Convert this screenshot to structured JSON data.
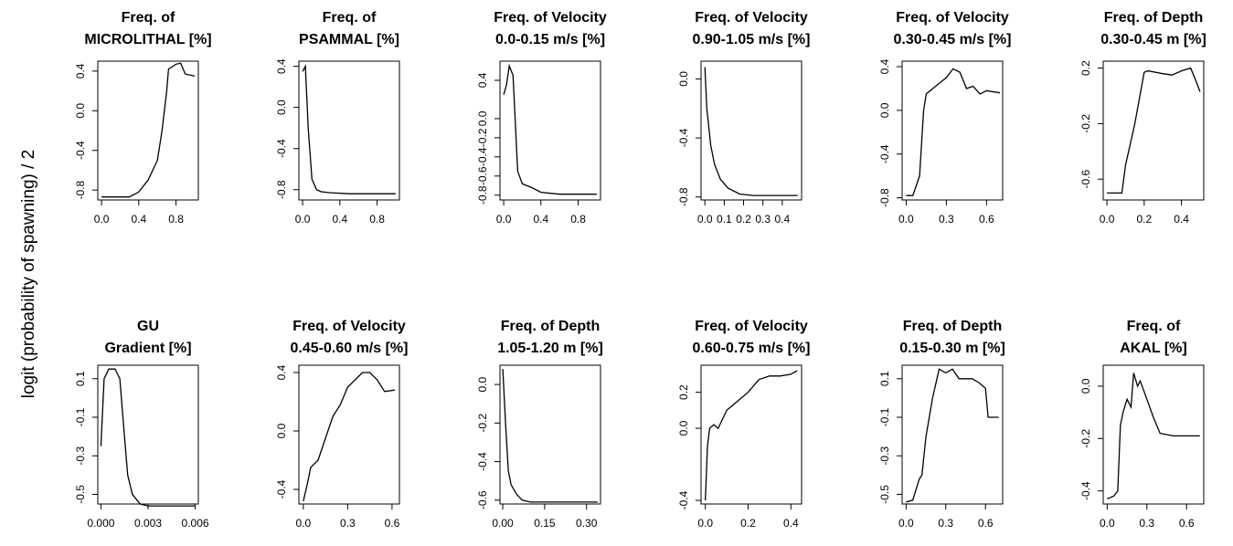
{
  "ylabel": "logit (probability of spawning) / 2",
  "chart_data": [
    {
      "type": "line",
      "title": [
        "Freq. of",
        "MICROLITHAL [%]"
      ],
      "color": "#000000",
      "x": [
        0,
        0.1,
        0.3,
        0.4,
        0.5,
        0.6,
        0.65,
        0.7,
        0.72,
        0.8,
        0.85,
        0.9,
        1.0
      ],
      "values": [
        -0.87,
        -0.87,
        -0.87,
        -0.82,
        -0.7,
        -0.5,
        -0.2,
        0.2,
        0.42,
        0.47,
        0.48,
        0.37,
        0.35
      ],
      "xlim": [
        -0.04,
        1.04
      ],
      "xticks": [
        {
          "value": 0,
          "label": "0.0"
        },
        0.4,
        0.8
      ],
      "ylim": [
        -0.9,
        0.5
      ],
      "yticks": [
        -0.8,
        -0.4,
        {
          "value": 0,
          "label": "0.0"
        },
        0.4
      ]
    },
    {
      "type": "line",
      "title": [
        "Freq. of",
        "PSAMMAL [%]"
      ],
      "color": "#000000",
      "x": [
        0,
        0.03,
        0.06,
        0.1,
        0.15,
        0.2,
        0.3,
        0.5,
        1.0
      ],
      "values": [
        0.35,
        0.4,
        -0.2,
        -0.7,
        -0.8,
        -0.82,
        -0.83,
        -0.84,
        -0.84
      ],
      "xlim": [
        -0.04,
        1.04
      ],
      "xticks": [
        {
          "value": 0,
          "label": "0.0"
        },
        0.4,
        0.8
      ],
      "ylim": [
        -0.9,
        0.45
      ],
      "yticks": [
        -0.8,
        -0.4,
        {
          "value": 0,
          "label": "0.0"
        },
        0.4
      ]
    },
    {
      "type": "line",
      "title": [
        "Freq. of Velocity",
        "0.0-0.15 m/s [%]"
      ],
      "color": "#000000",
      "x": [
        0,
        0.03,
        0.06,
        0.1,
        0.15,
        0.2,
        0.3,
        0.4,
        0.6,
        1.0
      ],
      "values": [
        0.25,
        0.35,
        0.55,
        0.45,
        -0.55,
        -0.68,
        -0.72,
        -0.77,
        -0.79,
        -0.79
      ],
      "xlim": [
        -0.04,
        1.04
      ],
      "xticks": [
        {
          "value": 0,
          "label": "0.0"
        },
        0.4,
        0.8
      ],
      "ylim": [
        -0.85,
        0.6
      ],
      "yticks": [
        -0.8,
        -0.6,
        -0.4,
        -0.2,
        {
          "value": 0,
          "label": "0.0"
        },
        0.4
      ]
    },
    {
      "type": "line",
      "title": [
        "Freq. of Velocity",
        "0.90-1.05 m/s [%]"
      ],
      "color": "#000000",
      "x": [
        0,
        0.01,
        0.03,
        0.05,
        0.08,
        0.12,
        0.18,
        0.25,
        0.48
      ],
      "values": [
        0.08,
        -0.2,
        -0.45,
        -0.58,
        -0.68,
        -0.74,
        -0.78,
        -0.79,
        -0.79
      ],
      "xlim": [
        -0.02,
        0.5
      ],
      "xticks": [
        {
          "value": 0,
          "label": "0.0"
        },
        0.1,
        0.2,
        0.3,
        0.4
      ],
      "ylim": [
        -0.82,
        0.12
      ],
      "yticks": [
        -0.8,
        -0.4,
        {
          "value": 0,
          "label": "0.0"
        }
      ]
    },
    {
      "type": "line",
      "title": [
        "Freq. of Velocity",
        "0.30-0.45 m/s [%]"
      ],
      "color": "#000000",
      "x": [
        0,
        0.05,
        0.1,
        0.13,
        0.15,
        0.2,
        0.25,
        0.3,
        0.35,
        0.4,
        0.45,
        0.5,
        0.55,
        0.6,
        0.7
      ],
      "values": [
        -0.78,
        -0.78,
        -0.6,
        0.0,
        0.15,
        0.2,
        0.25,
        0.3,
        0.38,
        0.35,
        0.2,
        0.22,
        0.15,
        0.18,
        0.16
      ],
      "xlim": [
        -0.03,
        0.72
      ],
      "xticks": [
        {
          "value": 0,
          "label": "0.0"
        },
        0.3,
        0.6
      ],
      "ylim": [
        -0.82,
        0.45
      ],
      "yticks": [
        -0.8,
        -0.4,
        {
          "value": 0,
          "label": "0.0"
        },
        0.4
      ]
    },
    {
      "type": "line",
      "title": [
        "Freq. of Depth",
        "0.30-0.45 m [%]"
      ],
      "color": "#000000",
      "x": [
        0,
        0.05,
        0.08,
        0.1,
        0.15,
        0.2,
        0.22,
        0.3,
        0.35,
        0.4,
        0.45,
        0.48,
        0.5
      ],
      "values": [
        -0.7,
        -0.7,
        -0.7,
        -0.5,
        -0.2,
        0.17,
        0.18,
        0.16,
        0.15,
        0.18,
        0.2,
        0.1,
        0.03
      ],
      "xlim": [
        -0.02,
        0.52
      ],
      "xticks": [
        {
          "value": 0,
          "label": "0.0"
        },
        0.2,
        0.4
      ],
      "ylim": [
        -0.75,
        0.25
      ],
      "yticks": [
        -0.6,
        -0.2,
        0.2
      ]
    },
    {
      "type": "line",
      "title": [
        "GU",
        "Gradient [%]"
      ],
      "color": "#000000",
      "x": [
        0,
        0.0002,
        0.0005,
        0.0009,
        0.0012,
        0.0015,
        0.0017,
        0.002,
        0.0025,
        0.003,
        0.006
      ],
      "values": [
        -0.25,
        0.1,
        0.15,
        0.15,
        0.1,
        -0.2,
        -0.4,
        -0.5,
        -0.55,
        -0.56,
        -0.56
      ],
      "xlim": [
        -0.0002,
        0.0062
      ],
      "xticks": [
        {
          "value": 0,
          "label": "0.000"
        },
        0.003,
        0.006
      ],
      "ylim": [
        -0.55,
        0.17
      ],
      "yticks": [
        -0.5,
        -0.3,
        -0.1,
        0.1
      ]
    },
    {
      "type": "line",
      "title": [
        "Freq. of Velocity",
        "0.45-0.60 m/s [%]"
      ],
      "color": "#000000",
      "x": [
        0,
        0.03,
        0.05,
        0.1,
        0.15,
        0.2,
        0.25,
        0.3,
        0.35,
        0.4,
        0.45,
        0.5,
        0.55,
        0.62
      ],
      "values": [
        -0.48,
        -0.35,
        -0.25,
        -0.2,
        -0.05,
        0.1,
        0.18,
        0.3,
        0.35,
        0.4,
        0.4,
        0.35,
        0.27,
        0.28
      ],
      "xlim": [
        -0.03,
        0.65
      ],
      "xticks": [
        {
          "value": 0,
          "label": "0.0"
        },
        0.3,
        0.6
      ],
      "ylim": [
        -0.5,
        0.45
      ],
      "yticks": [
        -0.4,
        {
          "value": 0,
          "label": "0.0"
        },
        0.4
      ]
    },
    {
      "type": "line",
      "title": [
        "Freq. of Depth",
        "1.05-1.20 m [%]"
      ],
      "color": "#000000",
      "x": [
        0,
        0.01,
        0.02,
        0.03,
        0.05,
        0.07,
        0.1,
        0.15,
        0.34
      ],
      "values": [
        0.08,
        -0.2,
        -0.45,
        -0.52,
        -0.57,
        -0.6,
        -0.61,
        -0.61,
        -0.61
      ],
      "xlim": [
        -0.01,
        0.35
      ],
      "xticks": [
        {
          "value": 0,
          "label": "0.00"
        },
        0.15,
        {
          "value": 0.3,
          "label": "0.30"
        }
      ],
      "ylim": [
        -0.62,
        0.1
      ],
      "yticks": [
        -0.6,
        -0.4,
        -0.2,
        {
          "value": 0,
          "label": "0.0"
        }
      ]
    },
    {
      "type": "line",
      "title": [
        "Freq. of Velocity",
        "0.60-0.75 m/s [%]"
      ],
      "color": "#000000",
      "x": [
        0,
        0.01,
        0.02,
        0.04,
        0.06,
        0.1,
        0.15,
        0.2,
        0.25,
        0.3,
        0.35,
        0.4,
        0.43
      ],
      "values": [
        -0.4,
        -0.1,
        0.0,
        0.02,
        0.0,
        0.1,
        0.15,
        0.2,
        0.27,
        0.29,
        0.29,
        0.3,
        0.32
      ],
      "xlim": [
        -0.02,
        0.45
      ],
      "xticks": [
        {
          "value": 0,
          "label": "0.0"
        },
        0.2,
        0.4
      ],
      "ylim": [
        -0.42,
        0.35
      ],
      "yticks": [
        -0.4,
        {
          "value": 0,
          "label": "0.0"
        },
        0.2
      ]
    },
    {
      "type": "line",
      "title": [
        "Freq. of Depth",
        "0.15-0.30 m [%]"
      ],
      "color": "#000000",
      "x": [
        0,
        0.05,
        0.1,
        0.12,
        0.15,
        0.2,
        0.25,
        0.3,
        0.35,
        0.4,
        0.5,
        0.55,
        0.6,
        0.62,
        0.7
      ],
      "values": [
        -0.54,
        -0.53,
        -0.42,
        -0.4,
        -0.2,
        0.0,
        0.15,
        0.13,
        0.15,
        0.1,
        0.1,
        0.08,
        0.05,
        -0.1,
        -0.1
      ],
      "xlim": [
        -0.03,
        0.73
      ],
      "xticks": [
        {
          "value": 0,
          "label": "0.0"
        },
        0.3,
        0.6
      ],
      "ylim": [
        -0.55,
        0.17
      ],
      "yticks": [
        -0.5,
        -0.3,
        -0.1,
        0.1
      ]
    },
    {
      "type": "line",
      "title": [
        "Freq. of",
        "AKAL [%]"
      ],
      "color": "#000000",
      "x": [
        0,
        0.05,
        0.08,
        0.1,
        0.12,
        0.15,
        0.18,
        0.2,
        0.23,
        0.25,
        0.3,
        0.35,
        0.4,
        0.5,
        0.7
      ],
      "values": [
        -0.43,
        -0.42,
        -0.4,
        -0.15,
        -0.1,
        -0.05,
        -0.08,
        0.05,
        0.0,
        0.02,
        -0.05,
        -0.12,
        -0.18,
        -0.19,
        -0.19
      ],
      "xlim": [
        -0.03,
        0.73
      ],
      "xticks": [
        {
          "value": 0,
          "label": "0.0"
        },
        0.3,
        0.6
      ],
      "ylim": [
        -0.45,
        0.08
      ],
      "yticks": [
        -0.4,
        -0.2,
        {
          "value": 0,
          "label": "0.0"
        }
      ]
    }
  ]
}
